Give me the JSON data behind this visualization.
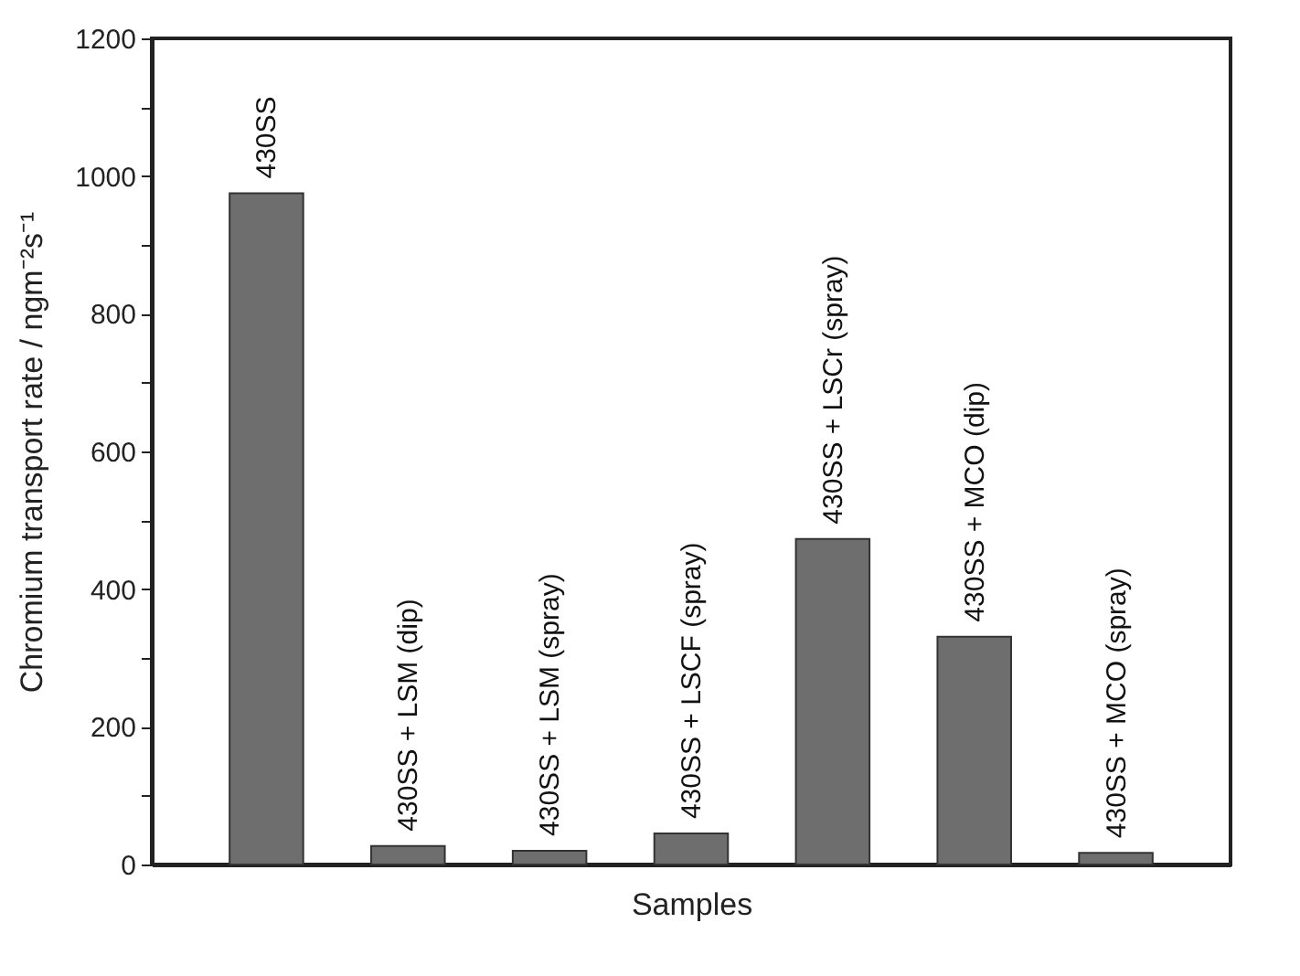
{
  "chart_data": {
    "type": "bar",
    "xlabel": "Samples",
    "ylabel": "Chromium transport rate / ngm⁻²s⁻¹",
    "categories": [
      "430SS",
      "430SS + LSM (dip)",
      "430SS + LSM (spray)",
      "430SS + LSCF (spray)",
      "430SS + LSCr (spray)",
      "430SS + MCO (dip)",
      "430SS + MCO (spray)"
    ],
    "values": [
      975,
      27,
      20,
      45,
      473,
      331,
      17
    ],
    "color": "#6e6e6e",
    "ylim": [
      0,
      1200
    ],
    "yticks": [
      0,
      {
        "value": 100,
        "label": null
      },
      200,
      {
        "value": 300,
        "label": null
      },
      400,
      {
        "value": 500,
        "label": null
      },
      600,
      {
        "value": 700,
        "label": null
      },
      800,
      {
        "value": 900,
        "label": null
      },
      1000,
      {
        "value": 1100,
        "label": null
      },
      1200
    ],
    "tick_labels": "y"
  }
}
